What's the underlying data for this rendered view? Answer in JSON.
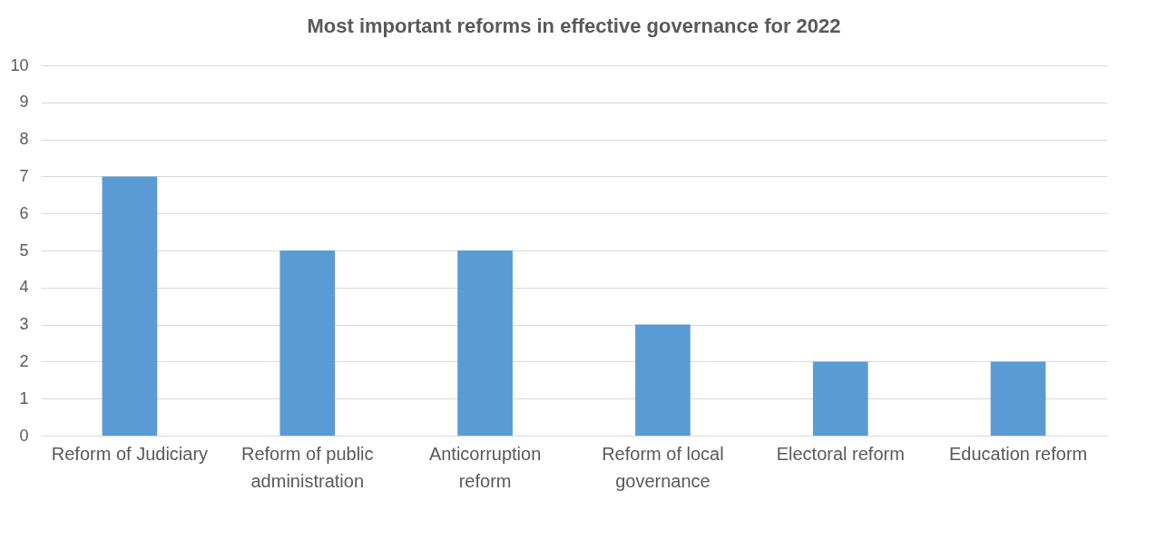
{
  "chart_data": {
    "type": "bar",
    "title": "Most important reforms in effective governance for 2022",
    "categories": [
      "Reform of Judiciary",
      "Reform of public administration",
      "Anticorruption reform",
      "Reform of local governance",
      "Electoral reform",
      "Education reform"
    ],
    "values": [
      7,
      5,
      5,
      3,
      2,
      2
    ],
    "color": "#5b9bd5",
    "ylim": [
      0,
      10
    ],
    "yticks": [
      0,
      1,
      2,
      3,
      4,
      5,
      6,
      7,
      8,
      9,
      10
    ],
    "grid": "y"
  }
}
